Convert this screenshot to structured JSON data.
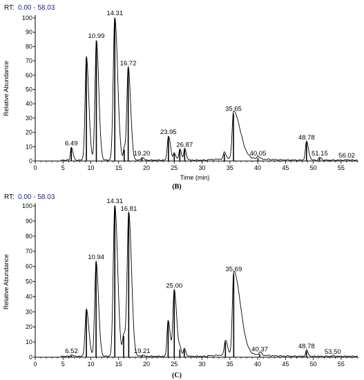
{
  "chart_data": [
    {
      "type": "line",
      "rt_prefix": "RT:",
      "rt_range": "0.00 - 58.03",
      "xlabel": "Time (min)",
      "ylabel": "Relative Abundance",
      "caption": "(B)",
      "xlim": [
        0,
        58
      ],
      "ylim": [
        0,
        100
      ],
      "x_ticks": [
        0,
        5,
        10,
        15,
        20,
        25,
        30,
        35,
        40,
        45,
        50,
        55
      ],
      "y_ticks": [
        0,
        10,
        20,
        30,
        40,
        50,
        60,
        70,
        80,
        90,
        100
      ],
      "peaks": [
        {
          "rt": 6.49,
          "label": "6.49",
          "abundance": 9
        },
        {
          "rt": 9.2,
          "label": "",
          "abundance": 72
        },
        {
          "rt": 10.99,
          "label": "10.99",
          "abundance": 84
        },
        {
          "rt": 14.31,
          "label": "14.31",
          "abundance": 100
        },
        {
          "rt": 16.0,
          "label": "",
          "abundance": 8
        },
        {
          "rt": 16.72,
          "label": "16.72",
          "abundance": 65
        },
        {
          "rt": 19.2,
          "label": "19.20",
          "abundance": 2
        },
        {
          "rt": 23.95,
          "label": "23.95",
          "abundance": 17
        },
        {
          "rt": 25.0,
          "label": "",
          "abundance": 5
        },
        {
          "rt": 26.0,
          "label": "",
          "abundance": 8
        },
        {
          "rt": 26.87,
          "label": "26.87",
          "abundance": 8
        },
        {
          "rt": 34.0,
          "label": "",
          "abundance": 5
        },
        {
          "rt": 35.65,
          "label": "35.65",
          "abundance": 33
        },
        {
          "rt": 40.05,
          "label": "40.05",
          "abundance": 2
        },
        {
          "rt": 48.78,
          "label": "48.78",
          "abundance": 13
        },
        {
          "rt": 51.15,
          "label": "51.15",
          "abundance": 2
        },
        {
          "rt": 56.02,
          "label": "56.02",
          "abundance": 0.5
        }
      ]
    },
    {
      "type": "line",
      "rt_prefix": "RT:",
      "rt_range": "0.00 - 58.03",
      "xlabel": "",
      "ylabel": "Relative Abundance",
      "caption": "(C)",
      "xlim": [
        0,
        58
      ],
      "ylim": [
        0,
        100
      ],
      "x_ticks": [
        0,
        5,
        10,
        15,
        20,
        25,
        30,
        35,
        40,
        45,
        50,
        55
      ],
      "y_ticks": [
        0,
        10,
        20,
        30,
        40,
        50,
        60,
        70,
        80,
        90,
        100
      ],
      "peaks": [
        {
          "rt": 6.52,
          "label": "6.52",
          "abundance": 1
        },
        {
          "rt": 9.2,
          "label": "",
          "abundance": 31
        },
        {
          "rt": 10.94,
          "label": "10.94",
          "abundance": 63
        },
        {
          "rt": 14.31,
          "label": "14.31",
          "abundance": 100
        },
        {
          "rt": 15.9,
          "label": "",
          "abundance": 14
        },
        {
          "rt": 16.81,
          "label": "16.81",
          "abundance": 95
        },
        {
          "rt": 19.21,
          "label": "19.21",
          "abundance": 1
        },
        {
          "rt": 23.9,
          "label": "",
          "abundance": 24
        },
        {
          "rt": 25.0,
          "label": "25.00",
          "abundance": 44
        },
        {
          "rt": 26.0,
          "label": "",
          "abundance": 5
        },
        {
          "rt": 26.8,
          "label": "",
          "abundance": 5
        },
        {
          "rt": 34.2,
          "label": "",
          "abundance": 10
        },
        {
          "rt": 35.69,
          "label": "35.69",
          "abundance": 55
        },
        {
          "rt": 40.37,
          "label": "40.37",
          "abundance": 2
        },
        {
          "rt": 48.78,
          "label": "48.78",
          "abundance": 4
        },
        {
          "rt": 53.5,
          "label": "53.50",
          "abundance": 0.5
        }
      ]
    }
  ]
}
